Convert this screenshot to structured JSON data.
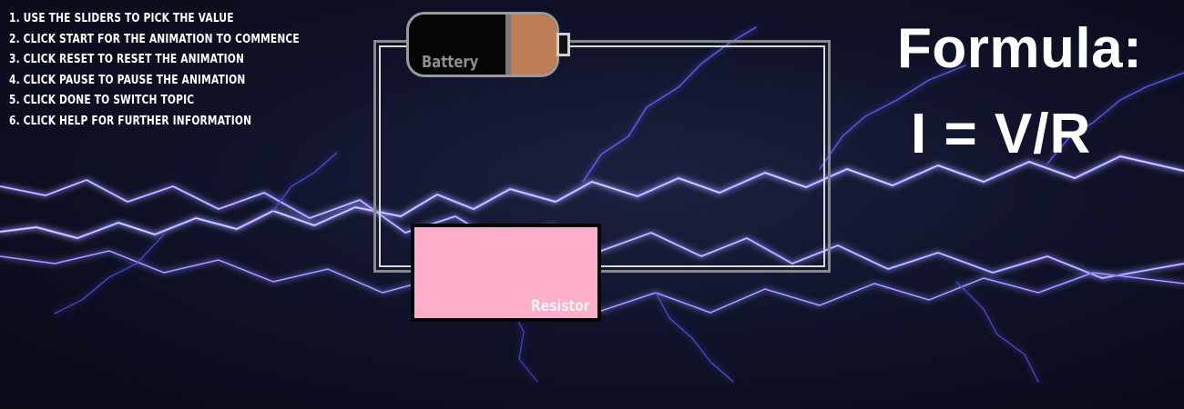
{
  "instructions": [
    "1. USE THE SLIDERS TO PICK THE VALUE",
    "2. CLICK START FOR THE ANIMATION TO COMMENCE",
    "3. CLICK RESET TO RESET THE ANIMATION",
    "4. CLICK PAUSE TO PAUSE THE ANIMATION",
    "5. CLICK DONE TO SWITCH TOPIC",
    "6. CLICK HELP FOR FURTHER INFORMATION"
  ],
  "circuit": {
    "battery_label": "Battery",
    "resistor_label": "Resistor"
  },
  "formula": {
    "title": "Formula:",
    "equation": "I = V/R"
  },
  "colors": {
    "background": "#0b0e1c",
    "lightning": "#6f6bff",
    "resistor": "#fcaecb",
    "battery_fill": "#bf7e55",
    "wire": "#d9d9d9"
  }
}
